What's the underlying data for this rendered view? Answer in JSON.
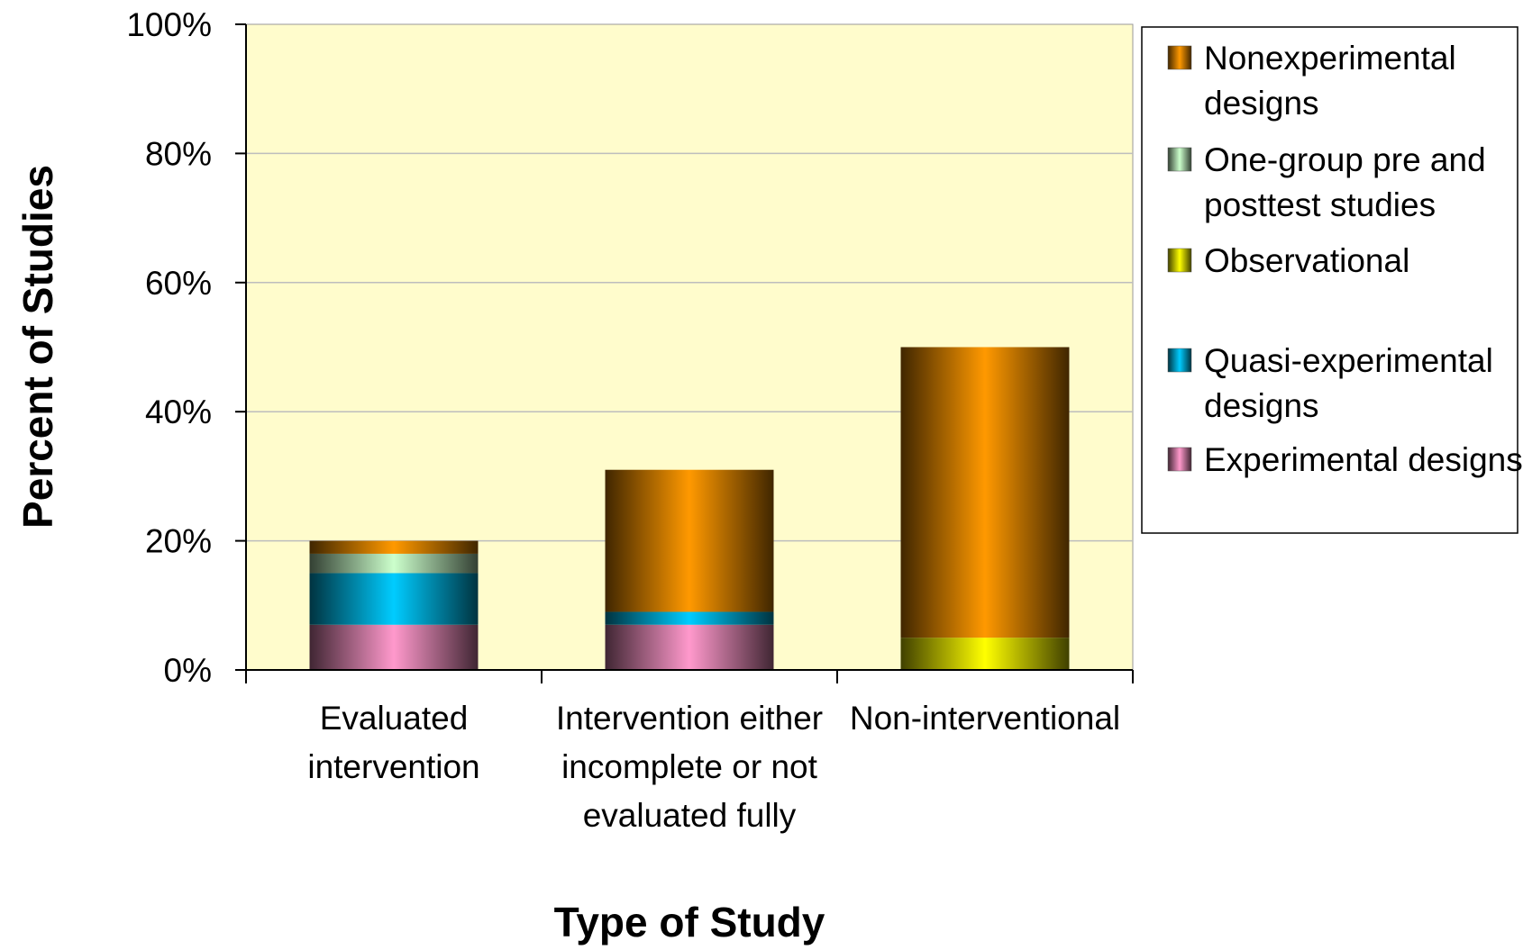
{
  "chart_data": {
    "type": "bar",
    "stacked": true,
    "xlabel": "Type of Study",
    "ylabel": "Percent of Studies",
    "ylim": [
      0,
      100
    ],
    "yticks": [
      "0%",
      "20%",
      "40%",
      "60%",
      "80%",
      "100%"
    ],
    "grid": true,
    "legend_position": "right",
    "plot_background": "#FFFCCC",
    "categories": [
      [
        "Evaluated",
        "intervention"
      ],
      [
        "Intervention either",
        "incomplete or not",
        "evaluated fully"
      ],
      [
        "Non-interventional"
      ]
    ],
    "series": [
      {
        "name": "Experimental designs",
        "color": "#FF99CC",
        "values": [
          7,
          7,
          0
        ]
      },
      {
        "name": "Quasi-experimental designs",
        "color": "#00CCFF",
        "values": [
          8,
          2,
          0
        ]
      },
      {
        "name": "Observational",
        "color": "#FFFF00",
        "values": [
          0,
          0,
          5
        ]
      },
      {
        "name": "One-group pre and posttest studies",
        "color": "#CCFFCC",
        "values": [
          3,
          0,
          0
        ]
      },
      {
        "name": "Nonexperimental designs",
        "color": "#FF9900",
        "values": [
          2,
          22,
          45
        ]
      }
    ],
    "legend": [
      {
        "lines": [
          "Nonexperimental",
          "designs"
        ],
        "color": "#FF9900"
      },
      {
        "lines": [
          "One-group pre and",
          "posttest studies"
        ],
        "color": "#CCFFCC"
      },
      {
        "lines": [
          "Observational"
        ],
        "color": "#FFFF00"
      },
      {
        "lines": [
          "Quasi-experimental",
          "designs"
        ],
        "color": "#00CCFF"
      },
      {
        "lines": [
          "Experimental designs"
        ],
        "color": "#FF99CC"
      }
    ]
  }
}
